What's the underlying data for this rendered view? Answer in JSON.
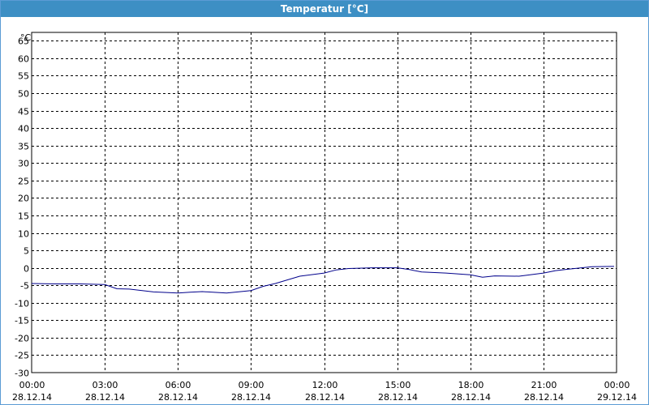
{
  "window": {
    "title": "Temperatur [°C]"
  },
  "colors": {
    "titlebar": "#3d8fc4",
    "line": "#00008b",
    "grid": "#000000"
  },
  "chart_data": {
    "type": "line",
    "title": "Temperatur [°C]",
    "ylabel": "°C",
    "xlabel": "",
    "ylim": [
      -30,
      65
    ],
    "y_ticks": [
      65,
      60,
      55,
      50,
      45,
      40,
      35,
      30,
      25,
      20,
      15,
      10,
      5,
      0,
      -5,
      -10,
      -15,
      -20,
      -25,
      -30
    ],
    "xlim_hours": [
      0,
      24
    ],
    "x_ticks": [
      {
        "hour": 0,
        "time": "00:00",
        "date": "28.12.14"
      },
      {
        "hour": 3,
        "time": "03:00",
        "date": "28.12.14"
      },
      {
        "hour": 6,
        "time": "06:00",
        "date": "28.12.14"
      },
      {
        "hour": 9,
        "time": "09:00",
        "date": "28.12.14"
      },
      {
        "hour": 12,
        "time": "12:00",
        "date": "28.12.14"
      },
      {
        "hour": 15,
        "time": "15:00",
        "date": "28.12.14"
      },
      {
        "hour": 18,
        "time": "18:00",
        "date": "28.12.14"
      },
      {
        "hour": 21,
        "time": "21:00",
        "date": "28.12.14"
      },
      {
        "hour": 24,
        "time": "00:00",
        "date": "29.12.14"
      }
    ],
    "grid": true,
    "series": [
      {
        "x_hours": [
          0,
          1,
          2,
          3,
          3.5,
          4,
          5,
          6,
          6.5,
          7,
          8,
          9,
          9.5,
          10,
          11,
          12,
          12.5,
          13,
          14,
          15,
          15.5,
          16,
          17,
          18,
          18.5,
          19,
          20,
          21,
          21.5,
          22,
          23,
          23.9
        ],
        "y": [
          -4.5,
          -4.6,
          -4.6,
          -4.8,
          -6.0,
          -6.1,
          -6.9,
          -7.2,
          -7.0,
          -6.8,
          -7.2,
          -6.5,
          -5.3,
          -4.5,
          -2.4,
          -1.5,
          -0.6,
          -0.2,
          0.0,
          0.0,
          -0.5,
          -1.2,
          -1.5,
          -2.0,
          -2.7,
          -2.3,
          -2.4,
          -1.5,
          -0.8,
          -0.4,
          0.3,
          0.4
        ]
      }
    ]
  }
}
